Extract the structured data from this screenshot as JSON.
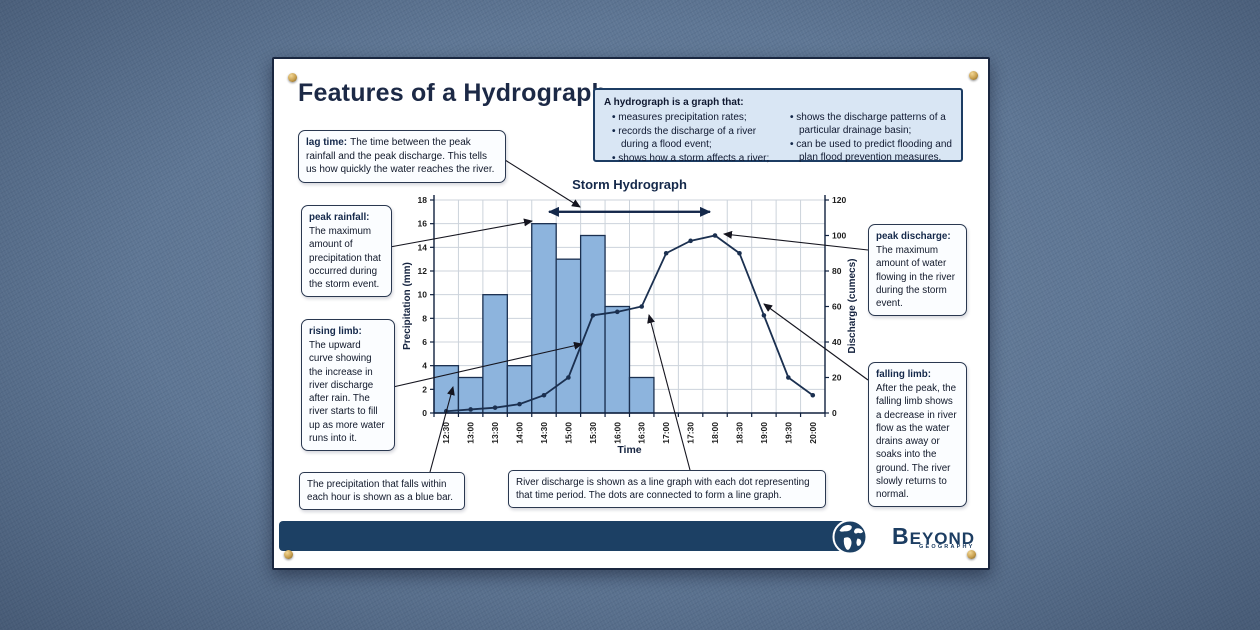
{
  "poster": {
    "title": "Features of a Hydrograph",
    "info_box": {
      "heading": "A hydrograph is a graph that:",
      "bullets_left": [
        "measures precipitation rates;",
        "records the discharge of a river during a flood event;",
        "shows how a storm affects a river;"
      ],
      "bullets_right": [
        "shows the discharge patterns of a particular drainage basin;",
        "can be used to predict flooding and plan flood prevention measures."
      ]
    },
    "callouts": {
      "lag_time": {
        "term": "lag time:",
        "text": "The time between the peak rainfall and the peak discharge. This tells us how quickly the water reaches the river."
      },
      "peak_rainfall": {
        "term": "peak rainfall:",
        "text": "The maximum amount of precipitation that occurred during the storm event."
      },
      "rising_limb": {
        "term": "rising limb:",
        "text": "The upward curve showing the increase in river discharge after rain. The river starts to fill up as more water runs into it."
      },
      "peak_discharge": {
        "term": "peak discharge:",
        "text": "The maximum amount of water flowing in the river during the storm event."
      },
      "falling_limb": {
        "term": "falling limb:",
        "text": "After the peak, the falling limb shows a decrease in river flow as the water drains away or soaks into the ground. The river slowly returns to normal."
      },
      "precipitation_note": "The precipitation that falls within each hour is shown as a blue bar.",
      "discharge_note": "River discharge is shown as a line graph with each dot representing that time period. The dots are connected to form a line graph."
    },
    "logo": {
      "brand": "BEYOND",
      "sub": "GEOGRAPHY"
    }
  },
  "chart_data": {
    "type": "combo-bar-line",
    "title": "Storm Hydrograph",
    "xlabel": "Time",
    "categories": [
      "12:30",
      "13:00",
      "13:30",
      "14:00",
      "14:30",
      "15:00",
      "15:30",
      "16:00",
      "16:30",
      "17:00",
      "17:30",
      "18:00",
      "18:30",
      "19:00",
      "19:30",
      "20:00"
    ],
    "series": [
      {
        "name": "Precipitation",
        "type": "bar",
        "axis": "left",
        "values": [
          4,
          3,
          10,
          4,
          16,
          13,
          15,
          9,
          3,
          0,
          0,
          0,
          0,
          0,
          0,
          0
        ]
      },
      {
        "name": "River discharge",
        "type": "line",
        "axis": "right",
        "values": [
          1,
          2,
          3,
          5,
          10,
          20,
          55,
          57,
          60,
          90,
          97,
          100,
          90,
          55,
          20,
          10
        ]
      }
    ],
    "y_left": {
      "label": "Precipitation (mm)",
      "min": 0,
      "max": 18,
      "step": 2
    },
    "y_right": {
      "label": "Discharge (cumecs)",
      "min": 0,
      "max": 120,
      "step": 20
    },
    "grid": true,
    "legend": false,
    "lag_time_arrow": {
      "from_category": "14:30",
      "to_category": "18:00",
      "at_precipitation_value": 17
    },
    "colors": {
      "bar_fill": "#8db4dd",
      "bar_stroke": "#1b3050",
      "line": "#1b3050",
      "grid": "#ccd3db",
      "accent_navy": "#14284a"
    }
  }
}
